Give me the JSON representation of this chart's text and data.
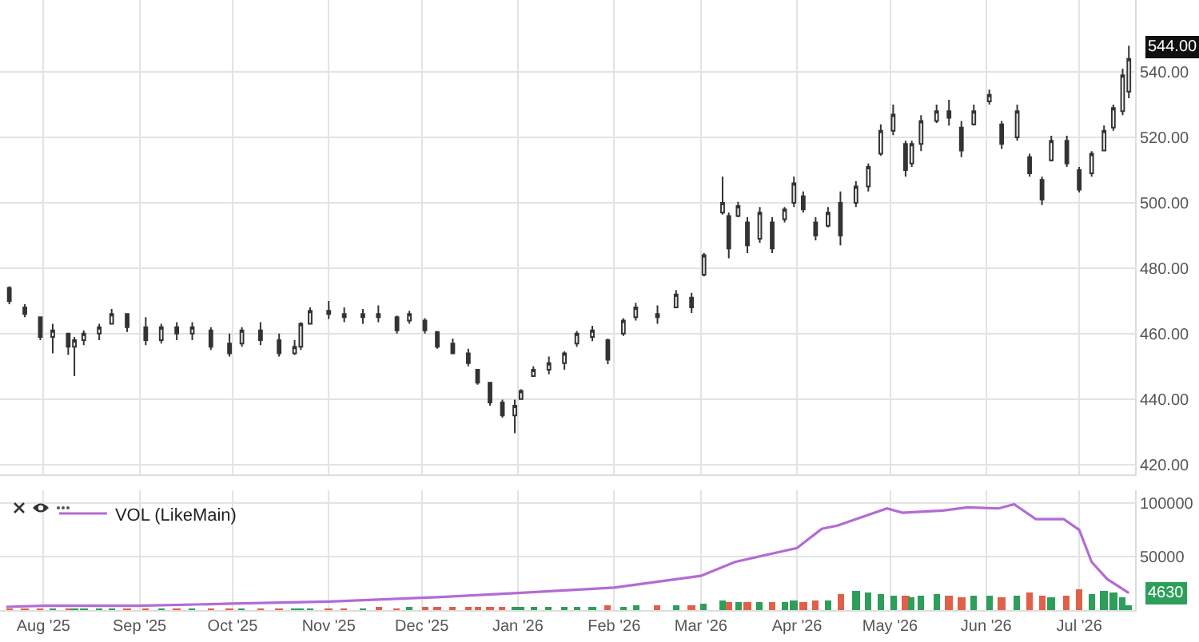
{
  "chart_data": [
    {
      "type": "candlestick",
      "x": [
        "2025-07-21",
        "2025-07-26",
        "2025-07-31",
        "2025-08-04",
        "2025-08-09",
        "2025-08-11",
        "2025-08-14",
        "2025-08-19",
        "2025-08-23",
        "2025-08-28",
        "2025-09-03",
        "2025-09-08",
        "2025-09-13",
        "2025-09-18",
        "2025-09-24",
        "2025-09-30",
        "2025-10-04",
        "2025-10-10",
        "2025-10-16",
        "2025-10-21",
        "2025-10-23",
        "2025-10-26",
        "2025-11-01",
        "2025-11-06",
        "2025-11-12",
        "2025-11-17",
        "2025-11-23",
        "2025-11-27",
        "2025-12-02",
        "2025-12-06",
        "2025-12-11",
        "2025-12-16",
        "2025-12-19",
        "2025-12-23",
        "2025-12-27",
        "2025-12-31",
        "2026-01-02",
        "2026-01-06",
        "2026-01-11",
        "2026-01-16",
        "2026-01-20",
        "2026-01-25",
        "2026-01-30",
        "2026-02-04",
        "2026-02-08",
        "2026-02-15",
        "2026-02-21",
        "2026-02-26",
        "2026-03-02",
        "2026-03-08",
        "2026-03-10",
        "2026-03-13",
        "2026-03-16",
        "2026-03-20",
        "2026-03-24",
        "2026-03-28",
        "2026-03-31",
        "2026-04-03",
        "2026-04-07",
        "2026-04-11",
        "2026-04-15",
        "2026-04-20",
        "2026-04-24",
        "2026-04-28",
        "2026-05-02",
        "2026-05-06",
        "2026-05-08",
        "2026-05-11",
        "2026-05-16",
        "2026-05-20",
        "2026-05-24",
        "2026-05-28",
        "2026-06-02",
        "2026-06-06",
        "2026-06-11",
        "2026-06-15",
        "2026-06-19",
        "2026-06-22",
        "2026-06-27",
        "2026-07-01",
        "2026-07-05",
        "2026-07-09",
        "2026-07-12",
        "2026-07-15",
        "2026-07-17"
      ],
      "ohlc": [
        [
          474,
          474.5,
          469,
          470
        ],
        [
          468,
          469,
          465,
          466
        ],
        [
          465,
          465,
          458,
          459
        ],
        [
          459,
          463,
          454,
          461
        ],
        [
          460,
          460,
          453.5,
          456
        ],
        [
          456,
          459,
          447,
          458
        ],
        [
          458,
          461,
          456.5,
          460
        ],
        [
          460,
          463,
          458,
          462
        ],
        [
          463,
          467.5,
          463,
          466
        ],
        [
          466,
          466,
          460.5,
          462
        ],
        [
          462,
          465,
          456.5,
          458
        ],
        [
          458,
          463,
          457,
          462
        ],
        [
          462,
          463.5,
          458,
          460
        ],
        [
          460,
          463.5,
          458,
          462
        ],
        [
          461,
          462,
          455,
          456
        ],
        [
          457,
          460,
          453,
          454
        ],
        [
          457,
          462,
          456,
          461
        ],
        [
          461,
          463.5,
          456.5,
          458
        ],
        [
          458,
          460,
          453,
          454
        ],
        [
          454,
          458,
          453.5,
          456
        ],
        [
          456,
          463.5,
          455,
          463
        ],
        [
          463,
          468,
          463,
          467
        ],
        [
          467,
          470,
          464.5,
          466
        ],
        [
          466,
          468,
          463.5,
          465
        ],
        [
          465,
          467.5,
          463,
          466
        ],
        [
          466,
          468.6,
          463.5,
          465
        ],
        [
          465,
          465.5,
          460,
          461
        ],
        [
          464,
          467,
          463,
          466
        ],
        [
          464,
          464.7,
          460,
          461
        ],
        [
          460.5,
          460.8,
          455.4,
          456
        ],
        [
          457,
          458.5,
          453.8,
          454
        ],
        [
          454,
          455.4,
          450,
          451
        ],
        [
          449,
          449,
          444.4,
          445
        ],
        [
          445,
          445,
          438,
          439
        ],
        [
          439,
          439.8,
          434.3,
          435
        ],
        [
          435,
          439.8,
          429.6,
          438
        ],
        [
          440,
          443,
          439.8,
          442.5
        ],
        [
          447,
          450,
          446.8,
          449
        ],
        [
          449,
          453,
          447.6,
          451
        ],
        [
          451,
          454.6,
          449,
          454
        ],
        [
          457,
          460.8,
          456,
          460
        ],
        [
          459,
          462.4,
          457.7,
          461
        ],
        [
          458,
          458.5,
          450.7,
          452
        ],
        [
          460,
          464.7,
          459.3,
          464
        ],
        [
          465,
          469.4,
          464,
          468
        ],
        [
          466,
          468.6,
          463,
          465
        ],
        [
          468,
          473.3,
          467.8,
          472
        ],
        [
          471,
          472.5,
          466.3,
          468
        ],
        [
          478,
          484.6,
          477.5,
          484
        ],
        [
          497,
          508,
          496.4,
          500
        ],
        [
          496,
          497,
          483,
          486
        ],
        [
          496,
          500.3,
          495.6,
          499
        ],
        [
          494,
          495.6,
          484.6,
          487
        ],
        [
          489,
          498.7,
          487.8,
          497
        ],
        [
          494,
          495.6,
          484.6,
          486
        ],
        [
          495,
          498.7,
          494,
          498
        ],
        [
          500,
          508,
          498.7,
          506
        ],
        [
          502,
          503.5,
          497,
          498
        ],
        [
          494,
          495.6,
          488.5,
          490
        ],
        [
          493,
          498.7,
          492.5,
          497
        ],
        [
          500,
          503.5,
          487,
          490
        ],
        [
          500,
          506.6,
          498.7,
          505
        ],
        [
          505,
          512,
          503.5,
          511
        ],
        [
          515,
          524,
          514.4,
          522
        ],
        [
          522,
          530,
          520.7,
          527
        ],
        [
          518,
          519,
          508,
          510
        ],
        [
          512,
          519,
          511,
          518
        ],
        [
          518,
          526.8,
          515.8,
          525
        ],
        [
          525,
          530,
          524.4,
          528
        ],
        [
          528,
          531.5,
          523.6,
          526
        ],
        [
          523,
          525,
          514,
          516
        ],
        [
          524,
          530,
          523.6,
          528
        ],
        [
          531,
          534.6,
          530,
          533
        ],
        [
          524,
          525,
          516.5,
          518
        ],
        [
          520,
          530,
          519,
          528
        ],
        [
          514,
          515,
          508,
          509
        ],
        [
          507,
          508,
          499.3,
          501
        ],
        [
          513,
          520.5,
          512.6,
          519
        ],
        [
          519,
          520.5,
          511,
          512
        ],
        [
          510,
          511,
          503.2,
          504
        ],
        [
          509,
          515.8,
          508,
          515
        ],
        [
          516,
          523.6,
          515.8,
          522
        ],
        [
          523,
          530,
          522,
          529
        ],
        [
          528,
          541,
          526.8,
          539
        ],
        [
          534,
          548,
          532,
          544
        ]
      ],
      "xlim": [
        "2025-07-18",
        "2026-07-19"
      ],
      "xticks": [
        {
          "value": "2025-08-01",
          "label": null
        },
        {
          "value": "2025-09-01",
          "label": null
        },
        {
          "value": "2025-10-01",
          "label": null
        },
        {
          "value": "2025-11-01",
          "label": null
        },
        {
          "value": "2025-12-01",
          "label": null
        },
        {
          "value": "2026-01-01",
          "label": null
        },
        {
          "value": "2026-02-01",
          "label": null
        },
        {
          "value": "2026-03-01",
          "label": null
        },
        {
          "value": "2026-04-01",
          "label": null
        },
        {
          "value": "2026-05-01",
          "label": null
        },
        {
          "value": "2026-06-01",
          "label": null
        },
        {
          "value": "2026-07-01",
          "label": null
        }
      ],
      "ylim": [
        417,
        562
      ],
      "yticks": [
        {
          "value": 420,
          "label": "420.00"
        },
        {
          "value": 440,
          "label": "440.00"
        },
        {
          "value": 460,
          "label": "460.00"
        },
        {
          "value": 480,
          "label": "480.00"
        },
        {
          "value": 500,
          "label": "500.00"
        },
        {
          "value": 520,
          "label": "520.00"
        },
        {
          "value": 540,
          "label": "540.00"
        }
      ],
      "grid": true,
      "tick_labels": "y",
      "annotations": [
        {
          "text": "544.00",
          "x": "2026-07-17",
          "y": 544
        }
      ]
    },
    {
      "type": "bar",
      "x": [
        "2025-07-21",
        "2025-07-26",
        "2025-07-31",
        "2025-08-04",
        "2025-08-09",
        "2025-08-11",
        "2025-08-14",
        "2025-08-19",
        "2025-08-23",
        "2025-08-28",
        "2025-09-03",
        "2025-09-08",
        "2025-09-13",
        "2025-09-18",
        "2025-09-24",
        "2025-09-30",
        "2025-10-04",
        "2025-10-10",
        "2025-10-16",
        "2025-10-21",
        "2025-10-23",
        "2025-10-26",
        "2025-11-01",
        "2025-11-06",
        "2025-11-12",
        "2025-11-17",
        "2025-11-23",
        "2025-11-27",
        "2025-12-02",
        "2025-12-06",
        "2025-12-11",
        "2025-12-16",
        "2025-12-19",
        "2025-12-23",
        "2025-12-27",
        "2025-12-31",
        "2026-01-02",
        "2026-01-06",
        "2026-01-11",
        "2026-01-16",
        "2026-01-20",
        "2026-01-25",
        "2026-01-30",
        "2026-02-04",
        "2026-02-08",
        "2026-02-15",
        "2026-02-21",
        "2026-02-26",
        "2026-03-02",
        "2026-03-08",
        "2026-03-10",
        "2026-03-13",
        "2026-03-16",
        "2026-03-20",
        "2026-03-24",
        "2026-03-28",
        "2026-03-31",
        "2026-04-03",
        "2026-04-07",
        "2026-04-11",
        "2026-04-15",
        "2026-04-20",
        "2026-04-24",
        "2026-04-28",
        "2026-05-02",
        "2026-05-06",
        "2026-05-08",
        "2026-05-11",
        "2026-05-16",
        "2026-05-20",
        "2026-05-24",
        "2026-05-28",
        "2026-06-02",
        "2026-06-06",
        "2026-06-11",
        "2026-06-15",
        "2026-06-19",
        "2026-06-22",
        "2026-06-27",
        "2026-07-01",
        "2026-07-05",
        "2026-07-09",
        "2026-07-12",
        "2026-07-15",
        "2026-07-17"
      ],
      "series": [
        {
          "values": [
            1000,
            1000,
            1000,
            1000,
            1000,
            1000,
            1000,
            1000,
            1000,
            1000,
            1000,
            1000,
            1000,
            1000,
            1000,
            1000,
            1000,
            1000,
            1000,
            1000,
            1000,
            1000,
            1000,
            1000,
            1000,
            2000,
            1000,
            2000,
            2000,
            2000,
            2000,
            2000,
            2000,
            3000,
            2000,
            3000,
            3000,
            3000,
            3000,
            3000,
            3000,
            3000,
            4000,
            3000,
            4000,
            4000,
            4000,
            5000,
            6000,
            9000,
            7000,
            7000,
            7000,
            8000,
            8000,
            7000,
            9000,
            8000,
            9000,
            9000,
            15000,
            18000,
            16000,
            15000,
            14000,
            13000,
            12000,
            14000,
            15000,
            13000,
            12000,
            14000,
            13000,
            12000,
            13000,
            16000,
            14000,
            12000,
            13000,
            19000,
            15000,
            18000,
            17000,
            12000,
            4630
          ],
          "colors": [
            "#e0604a",
            "#e0604a",
            "#e0604a",
            "#2e9e5b",
            "#e0604a",
            "#2e9e5b",
            "#2e9e5b",
            "#2e9e5b",
            "#2e9e5b",
            "#e0604a",
            "#e0604a",
            "#2e9e5b",
            "#e0604a",
            "#2e9e5b",
            "#e0604a",
            "#e0604a",
            "#2e9e5b",
            "#e0604a",
            "#e0604a",
            "#2e9e5b",
            "#2e9e5b",
            "#2e9e5b",
            "#e0604a",
            "#e0604a",
            "#2e9e5b",
            "#e0604a",
            "#e0604a",
            "#2e9e5b",
            "#e0604a",
            "#e0604a",
            "#e0604a",
            "#e0604a",
            "#e0604a",
            "#e0604a",
            "#e0604a",
            "#2e9e5b",
            "#2e9e5b",
            "#2e9e5b",
            "#2e9e5b",
            "#2e9e5b",
            "#2e9e5b",
            "#2e9e5b",
            "#e0604a",
            "#2e9e5b",
            "#2e9e5b",
            "#e0604a",
            "#2e9e5b",
            "#e0604a",
            "#2e9e5b",
            "#2e9e5b",
            "#e0604a",
            "#2e9e5b",
            "#e0604a",
            "#2e9e5b",
            "#e0604a",
            "#2e9e5b",
            "#2e9e5b",
            "#e0604a",
            "#e0604a",
            "#2e9e5b",
            "#e0604a",
            "#2e9e5b",
            "#2e9e5b",
            "#2e9e5b",
            "#2e9e5b",
            "#e0604a",
            "#2e9e5b",
            "#2e9e5b",
            "#2e9e5b",
            "#e0604a",
            "#e0604a",
            "#2e9e5b",
            "#2e9e5b",
            "#e0604a",
            "#2e9e5b",
            "#e0604a",
            "#e0604a",
            "#2e9e5b",
            "#e0604a",
            "#e0604a",
            "#2e9e5b",
            "#2e9e5b",
            "#2e9e5b",
            "#2e9e5b",
            "#2e9e5b"
          ]
        },
        {
          "type": "line",
          "name": "VOL (LikeMain)",
          "color": "#b36bd4",
          "x": [
            "2025-07-20",
            "2025-08-01",
            "2025-08-31",
            "2025-10-01",
            "2025-11-01",
            "2025-12-06",
            "2026-01-01",
            "2026-02-01",
            "2026-03-01",
            "2026-03-12",
            "2026-04-01",
            "2026-04-09",
            "2026-04-14",
            "2026-04-30",
            "2026-05-05",
            "2026-05-18",
            "2026-05-26",
            "2026-06-05",
            "2026-06-10",
            "2026-06-17",
            "2026-06-26",
            "2026-07-01",
            "2026-07-05",
            "2026-07-10",
            "2026-07-17"
          ],
          "values": [
            3000,
            4000,
            4000,
            6000,
            8000,
            12000,
            16000,
            21000,
            32000,
            45000,
            58000,
            76000,
            79000,
            95000,
            91000,
            93000,
            96000,
            95000,
            99000,
            85000,
            85000,
            75000,
            45000,
            29000,
            16000
          ]
        }
      ],
      "xlim": [
        "2025-07-18",
        "2026-07-19"
      ],
      "xticks": [
        {
          "value": "2025-08-01",
          "label": "Aug '25"
        },
        {
          "value": "2025-09-01",
          "label": "Sep '25"
        },
        {
          "value": "2025-10-01",
          "label": "Oct '25"
        },
        {
          "value": "2025-11-01",
          "label": "Nov '25"
        },
        {
          "value": "2025-12-01",
          "label": "Dec '25"
        },
        {
          "value": "2026-01-01",
          "label": "Jan '26"
        },
        {
          "value": "2026-02-01",
          "label": "Feb '26"
        },
        {
          "value": "2026-03-01",
          "label": "Mar '26"
        },
        {
          "value": "2026-04-01",
          "label": "Apr '26"
        },
        {
          "value": "2026-05-01",
          "label": "May '26"
        },
        {
          "value": "2026-06-01",
          "label": "Jun '26"
        },
        {
          "value": "2026-07-01",
          "label": "Jul '26"
        }
      ],
      "ylim": [
        0,
        112000
      ],
      "yticks": [
        50000,
        100000
      ],
      "grid": true,
      "legend": "top left",
      "annotations": [
        {
          "text": "4630",
          "x": "2026-07-17",
          "y": 4630
        }
      ]
    }
  ]
}
